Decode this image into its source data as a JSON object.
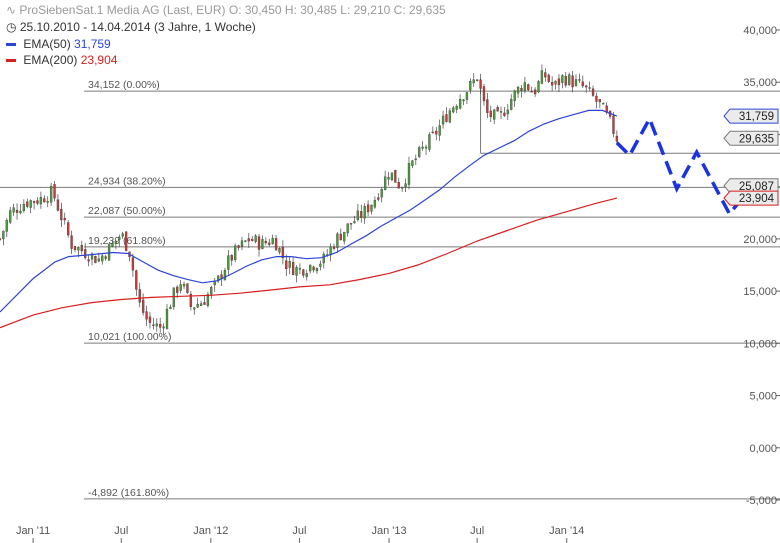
{
  "header": {
    "title": "ProSiebenSat.1 Media AG (Last, EUR)",
    "ohlc": "O: 30,450  H: 30,485  L: 29,210  C: 29,635",
    "range": "25.10.2010 - 14.04.2014 (3 Jahre, 1 Woche)",
    "ema50_label": "EMA(50)",
    "ema50_value": "31,759",
    "ema200_label": "EMA(200)",
    "ema200_value": "23,904"
  },
  "colors": {
    "ema50": "#2b44d8",
    "ema200": "#d81e1e",
    "forecast": "#1a33e0",
    "up": "#4a9a3a",
    "down": "#c23b3b",
    "grid": "#7a7a7a"
  },
  "chart_data": {
    "type": "line",
    "x_range": [
      "2010-10-25",
      "2015-03-15"
    ],
    "ylim": [
      -5500,
      40500
    ],
    "x_ticks": [
      {
        "date": "2011-01-01",
        "label": "Jan '11"
      },
      {
        "date": "2011-07-01",
        "label": "Jul"
      },
      {
        "date": "2012-01-01",
        "label": "Jan '12"
      },
      {
        "date": "2012-07-01",
        "label": "Jul"
      },
      {
        "date": "2013-01-01",
        "label": "Jan '13"
      },
      {
        "date": "2013-07-01",
        "label": "Jul"
      },
      {
        "date": "2014-01-01",
        "label": "Jan '14"
      }
    ],
    "y_ticks": [
      {
        "value": 40000,
        "label": "40,000"
      },
      {
        "value": 35000,
        "label": "35,000"
      },
      {
        "value": 30000,
        "label": "30,000"
      },
      {
        "value": 25000,
        "label": "25,000"
      },
      {
        "value": 20000,
        "label": "20,000"
      },
      {
        "value": 15000,
        "label": "15,000"
      },
      {
        "value": 10000,
        "label": "10,000"
      },
      {
        "value": 5000,
        "label": "5,000"
      },
      {
        "value": 0,
        "label": "0,000"
      },
      {
        "value": -5000,
        "label": "-5,000"
      }
    ],
    "fib_levels": [
      {
        "value": 34152,
        "label": "34,152 (0.00%)"
      },
      {
        "value": 24934,
        "label": "24,934 (38.20%)"
      },
      {
        "value": 22087,
        "label": "22,087 (50.00%)"
      },
      {
        "value": 19239,
        "label": "19,239 (61.80%)"
      },
      {
        "value": 10021,
        "label": "10,021 (100.00%)"
      },
      {
        "value": -4892,
        "label": "-4,892 (161.80%)"
      }
    ],
    "support_line": {
      "from": "2013-07-08",
      "value": 28200
    },
    "price_series": {
      "name": "ProSiebenSat.1 Media AG",
      "points": [
        [
          "2010-10-25",
          20000
        ],
        [
          "2010-11-15",
          22500
        ],
        [
          "2010-12-15",
          23500
        ],
        [
          "2011-01-15",
          23800
        ],
        [
          "2011-02-10",
          24500
        ],
        [
          "2011-03-01",
          22000
        ],
        [
          "2011-03-20",
          19500
        ],
        [
          "2011-04-15",
          18800
        ],
        [
          "2011-05-15",
          18000
        ],
        [
          "2011-06-15",
          19500
        ],
        [
          "2011-07-01",
          20500
        ],
        [
          "2011-07-20",
          18500
        ],
        [
          "2011-08-05",
          14000
        ],
        [
          "2011-08-25",
          12000
        ],
        [
          "2011-09-20",
          11500
        ],
        [
          "2011-10-15",
          14500
        ],
        [
          "2011-11-01",
          16000
        ],
        [
          "2011-11-20",
          13500
        ],
        [
          "2011-12-15",
          14000
        ],
        [
          "2012-01-10",
          15500
        ],
        [
          "2012-02-01",
          17500
        ],
        [
          "2012-02-25",
          19000
        ],
        [
          "2012-03-20",
          20000
        ],
        [
          "2012-04-15",
          19500
        ],
        [
          "2012-05-10",
          20000
        ],
        [
          "2012-06-05",
          17500
        ],
        [
          "2012-06-30",
          17000
        ],
        [
          "2012-07-25",
          17500
        ],
        [
          "2012-08-20",
          18000
        ],
        [
          "2012-09-15",
          20000
        ],
        [
          "2012-10-15",
          21500
        ],
        [
          "2012-11-10",
          22500
        ],
        [
          "2012-12-05",
          24000
        ],
        [
          "2013-01-01",
          26500
        ],
        [
          "2013-01-25",
          25000
        ],
        [
          "2013-02-15",
          27000
        ],
        [
          "2013-03-10",
          28500
        ],
        [
          "2013-04-05",
          30000
        ],
        [
          "2013-05-01",
          32000
        ],
        [
          "2013-05-25",
          33500
        ],
        [
          "2013-06-15",
          34500
        ],
        [
          "2013-07-01",
          35500
        ],
        [
          "2013-07-20",
          32000
        ],
        [
          "2013-08-15",
          31500
        ],
        [
          "2013-09-10",
          33500
        ],
        [
          "2013-10-05",
          35000
        ],
        [
          "2013-10-25",
          34000
        ],
        [
          "2013-11-15",
          35800
        ],
        [
          "2013-12-05",
          34500
        ],
        [
          "2013-12-25",
          35500
        ],
        [
          "2014-01-15",
          35000
        ],
        [
          "2014-02-05",
          34500
        ],
        [
          "2014-02-25",
          33500
        ],
        [
          "2014-03-15",
          32500
        ],
        [
          "2014-04-01",
          31000
        ],
        [
          "2014-04-14",
          29635
        ]
      ]
    },
    "series": [
      {
        "name": "EMA(50)",
        "last_value_label": "31,759",
        "points": [
          [
            "2010-10-25",
            13000
          ],
          [
            "2011-01-01",
            16200
          ],
          [
            "2011-02-15",
            17800
          ],
          [
            "2011-03-15",
            18300
          ],
          [
            "2011-05-01",
            18500
          ],
          [
            "2011-06-15",
            18700
          ],
          [
            "2011-07-15",
            18600
          ],
          [
            "2011-08-15",
            17800
          ],
          [
            "2011-09-15",
            17000
          ],
          [
            "2011-10-15",
            16500
          ],
          [
            "2011-11-15",
            16100
          ],
          [
            "2011-12-15",
            15800
          ],
          [
            "2012-01-15",
            16000
          ],
          [
            "2012-02-15",
            16700
          ],
          [
            "2012-03-15",
            17400
          ],
          [
            "2012-04-15",
            18000
          ],
          [
            "2012-05-15",
            18300
          ],
          [
            "2012-06-15",
            18300
          ],
          [
            "2012-07-15",
            18100
          ],
          [
            "2012-08-15",
            18200
          ],
          [
            "2012-09-15",
            18700
          ],
          [
            "2012-10-15",
            19500
          ],
          [
            "2012-11-15",
            20300
          ],
          [
            "2012-12-15",
            21200
          ],
          [
            "2013-01-15",
            22000
          ],
          [
            "2013-02-15",
            22800
          ],
          [
            "2013-03-15",
            23700
          ],
          [
            "2013-04-15",
            24700
          ],
          [
            "2013-05-15",
            25900
          ],
          [
            "2013-06-15",
            27000
          ],
          [
            "2013-07-15",
            28000
          ],
          [
            "2013-08-15",
            28700
          ],
          [
            "2013-09-15",
            29400
          ],
          [
            "2013-10-15",
            30300
          ],
          [
            "2013-11-15",
            31000
          ],
          [
            "2013-12-15",
            31500
          ],
          [
            "2014-01-15",
            31900
          ],
          [
            "2014-02-15",
            32300
          ],
          [
            "2014-03-15",
            32300
          ],
          [
            "2014-04-14",
            31759
          ]
        ]
      },
      {
        "name": "EMA(200)",
        "last_value_label": "23,904",
        "points": [
          [
            "2010-10-25",
            11500
          ],
          [
            "2011-01-01",
            12700
          ],
          [
            "2011-03-01",
            13400
          ],
          [
            "2011-05-01",
            13900
          ],
          [
            "2011-07-01",
            14200
          ],
          [
            "2011-09-01",
            14400
          ],
          [
            "2011-11-01",
            14500
          ],
          [
            "2012-01-01",
            14600
          ],
          [
            "2012-03-01",
            14800
          ],
          [
            "2012-05-01",
            15100
          ],
          [
            "2012-07-01",
            15400
          ],
          [
            "2012-09-01",
            15600
          ],
          [
            "2012-11-01",
            16100
          ],
          [
            "2013-01-01",
            16700
          ],
          [
            "2013-03-01",
            17500
          ],
          [
            "2013-05-01",
            18600
          ],
          [
            "2013-07-01",
            19800
          ],
          [
            "2013-09-01",
            20800
          ],
          [
            "2013-11-01",
            21800
          ],
          [
            "2014-01-01",
            22600
          ],
          [
            "2014-03-01",
            23400
          ],
          [
            "2014-04-14",
            23904
          ]
        ]
      },
      {
        "name": "Forecast",
        "style": "dashed",
        "points": [
          [
            "2014-04-14",
            29200
          ],
          [
            "2014-05-10",
            28000
          ],
          [
            "2014-06-20",
            31500
          ],
          [
            "2014-08-15",
            24800
          ],
          [
            "2014-09-25",
            28300
          ],
          [
            "2014-12-01",
            22400
          ],
          [
            "2015-01-20",
            25200
          ]
        ]
      }
    ],
    "price_labels": [
      {
        "value": 31759,
        "label": "31,759",
        "color": "#2b44d8"
      },
      {
        "value": 29635,
        "label": "29,635",
        "color": "#7a7a7a"
      },
      {
        "value": 25087,
        "label": "25,087",
        "color": "#7a7a7a"
      },
      {
        "value": 23904,
        "label": "23,904",
        "color": "#d81e1e"
      }
    ]
  }
}
